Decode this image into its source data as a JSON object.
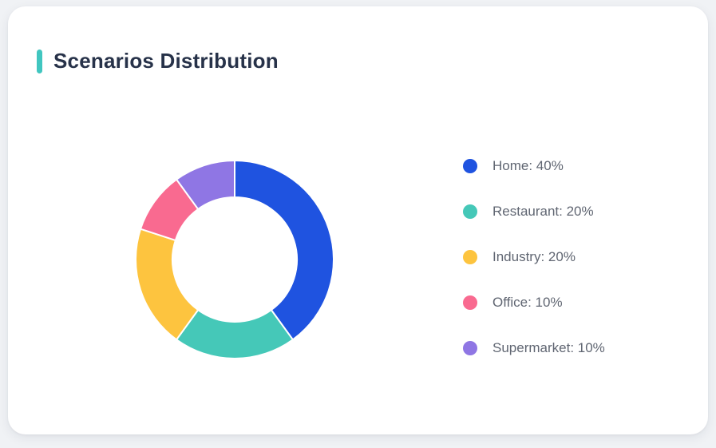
{
  "header": {
    "title": "Scenarios Distribution",
    "accent_color": "#41c6c0"
  },
  "legend": {
    "items": [
      {
        "label": "Home: 40%"
      },
      {
        "label": "Restaurant: 20%"
      },
      {
        "label": "Industry: 20%"
      },
      {
        "label": "Office: 10%"
      },
      {
        "label": "Supermarket: 10%"
      }
    ]
  },
  "chart_data": {
    "type": "pie",
    "subtype": "donut",
    "title": "Scenarios Distribution",
    "categories": [
      "Home",
      "Restaurant",
      "Industry",
      "Office",
      "Supermarket"
    ],
    "values": [
      40,
      20,
      20,
      10,
      10
    ],
    "unit": "%",
    "colors": [
      "#1f53e0",
      "#45c8b8",
      "#fdc43f",
      "#f96a90",
      "#8f76e4"
    ],
    "start_angle_deg": 0,
    "direction": "clockwise",
    "inner_radius_ratio": 0.63,
    "segment_border_color": "#ffffff",
    "legend_position": "right"
  },
  "colors": {
    "page_bg": "#f0f2f5",
    "card_bg": "#ffffff",
    "title_text": "#273249",
    "legend_text": "#606672"
  }
}
